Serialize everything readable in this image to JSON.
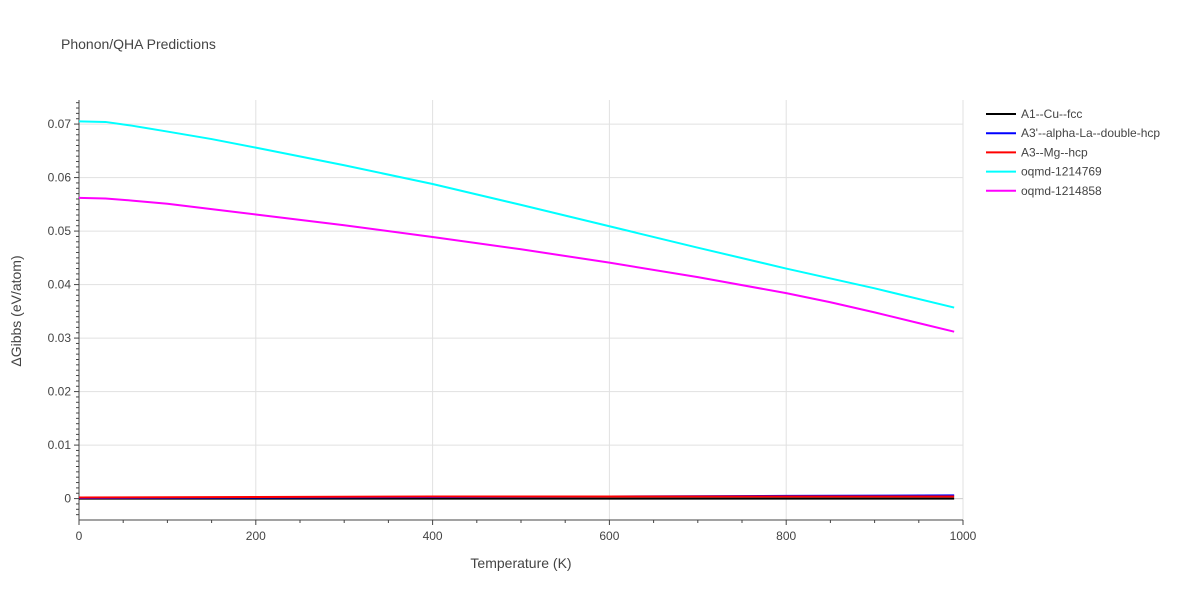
{
  "chart_data": {
    "type": "line",
    "title": "Phonon/QHA Predictions",
    "xlabel": "Temperature (K)",
    "ylabel": "ΔGibbs (eV/atom)",
    "xlim": [
      0,
      1000
    ],
    "ylim": [
      -0.004,
      0.0745
    ],
    "x_ticks": [
      0,
      200,
      400,
      600,
      800,
      1000
    ],
    "x_tick_labels": [
      "0",
      "200",
      "400",
      "600",
      "800",
      "1000"
    ],
    "y_ticks": [
      0,
      0.01,
      0.02,
      0.03,
      0.04,
      0.05,
      0.06,
      0.07
    ],
    "y_tick_labels": [
      "0",
      "0.01",
      "0.02",
      "0.03",
      "0.04",
      "0.05",
      "0.06",
      "0.07"
    ],
    "grid": true,
    "legend_position": "top-right outside",
    "series": [
      {
        "name": "A1--Cu--fcc",
        "color": "#000000",
        "x": [
          0,
          990
        ],
        "y": [
          0,
          0
        ]
      },
      {
        "name": "A3'--alpha-La--double-hcp",
        "color": "#0000ff",
        "x": [
          0,
          200,
          400,
          600,
          800,
          990
        ],
        "y": [
          0.0001,
          0.0002,
          0.0003,
          0.0004,
          0.0005,
          0.0006
        ]
      },
      {
        "name": "A3--Mg--hcp",
        "color": "#ff0000",
        "x": [
          0,
          200,
          400,
          600,
          800,
          990
        ],
        "y": [
          0.0002,
          0.0003,
          0.0004,
          0.0004,
          0.0004,
          0.0004
        ]
      },
      {
        "name": "oqmd-1214769",
        "color": "#00ffff",
        "x": [
          0,
          30,
          60,
          100,
          150,
          200,
          300,
          400,
          500,
          600,
          700,
          800,
          900,
          990
        ],
        "y": [
          0.0705,
          0.0704,
          0.0697,
          0.0686,
          0.0672,
          0.0656,
          0.0623,
          0.0588,
          0.0549,
          0.0509,
          0.0469,
          0.043,
          0.0393,
          0.0357
        ]
      },
      {
        "name": "oqmd-1214858",
        "color": "#ff00ff",
        "x": [
          0,
          30,
          60,
          100,
          150,
          200,
          300,
          400,
          500,
          600,
          700,
          800,
          850,
          900,
          950,
          990
        ],
        "y": [
          0.0562,
          0.0561,
          0.0557,
          0.0551,
          0.0541,
          0.0531,
          0.0511,
          0.0489,
          0.0466,
          0.0441,
          0.0414,
          0.0384,
          0.0367,
          0.0348,
          0.0328,
          0.0312
        ]
      }
    ]
  }
}
